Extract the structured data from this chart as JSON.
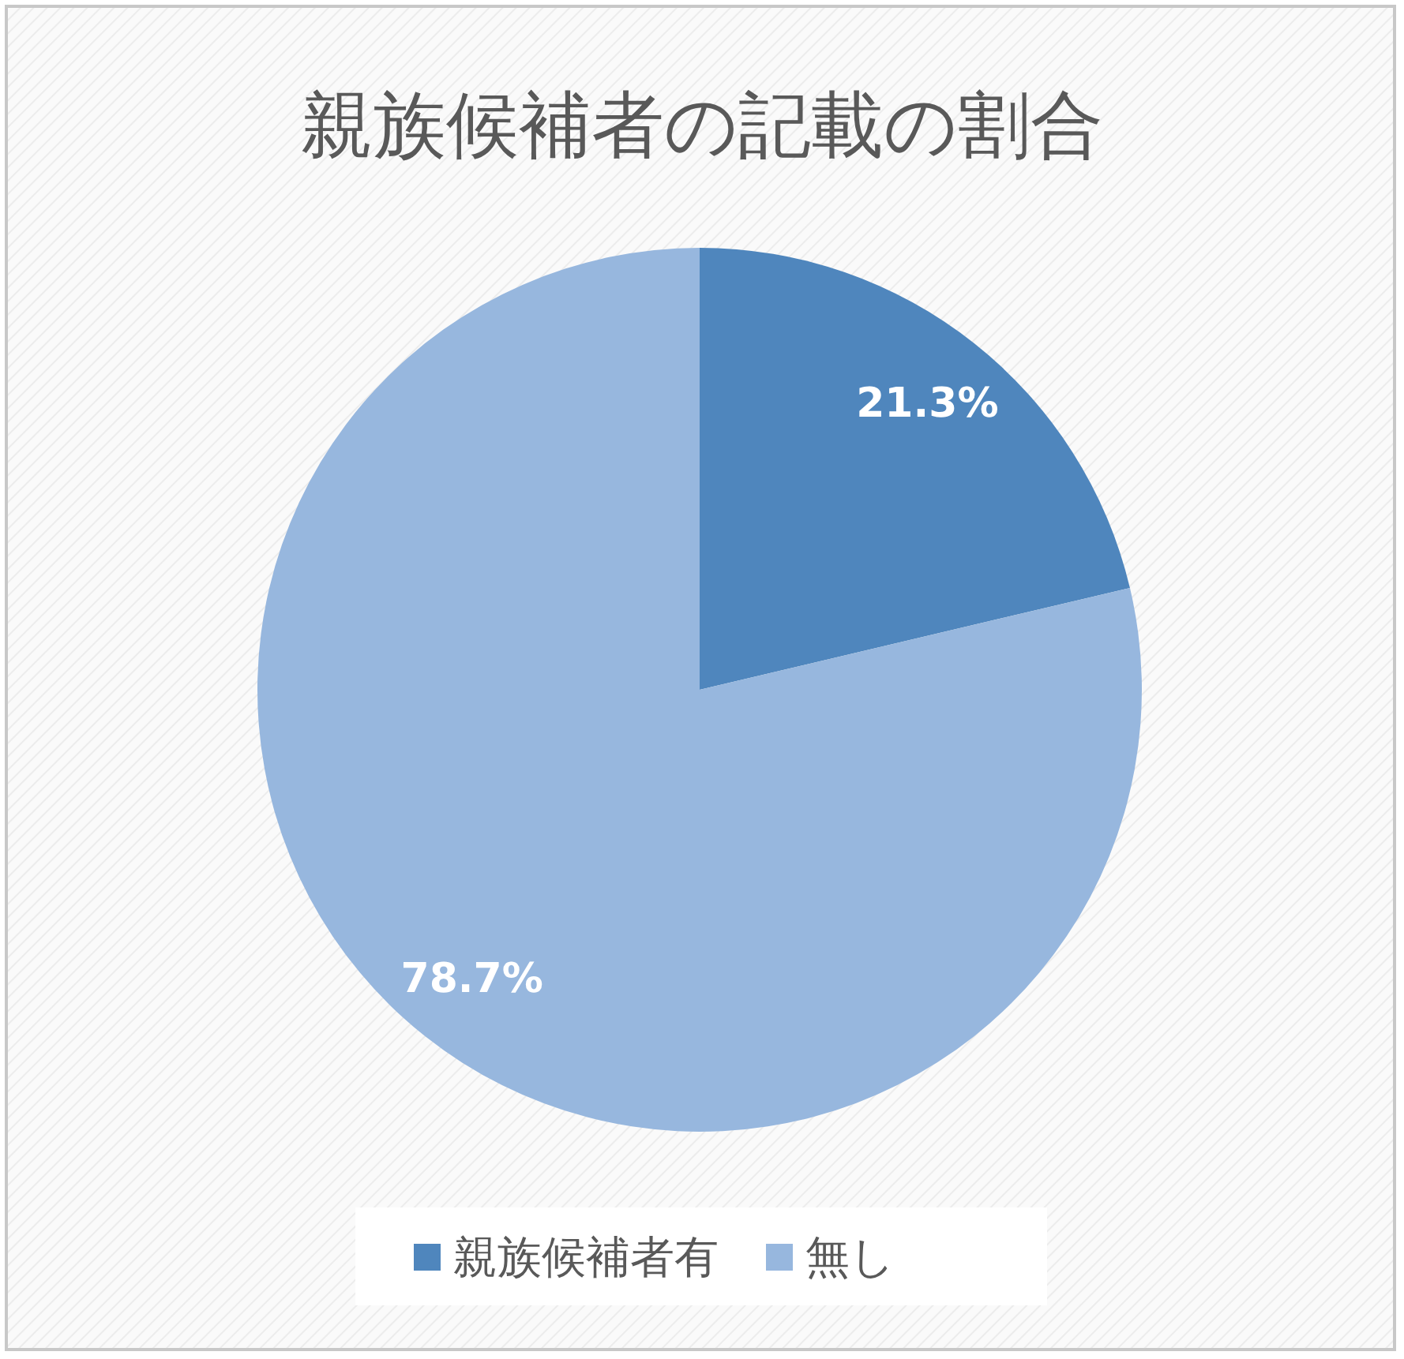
{
  "chart_data": {
    "type": "pie",
    "title": "親族候補者の記載の割合",
    "categories": [
      "親族候補者有",
      "無し"
    ],
    "values": [
      21.3,
      78.7
    ],
    "colors": [
      "#4f86bd",
      "#97b7de"
    ],
    "value_labels": [
      "21.3%",
      "78.7%"
    ],
    "legend": "bottom"
  }
}
